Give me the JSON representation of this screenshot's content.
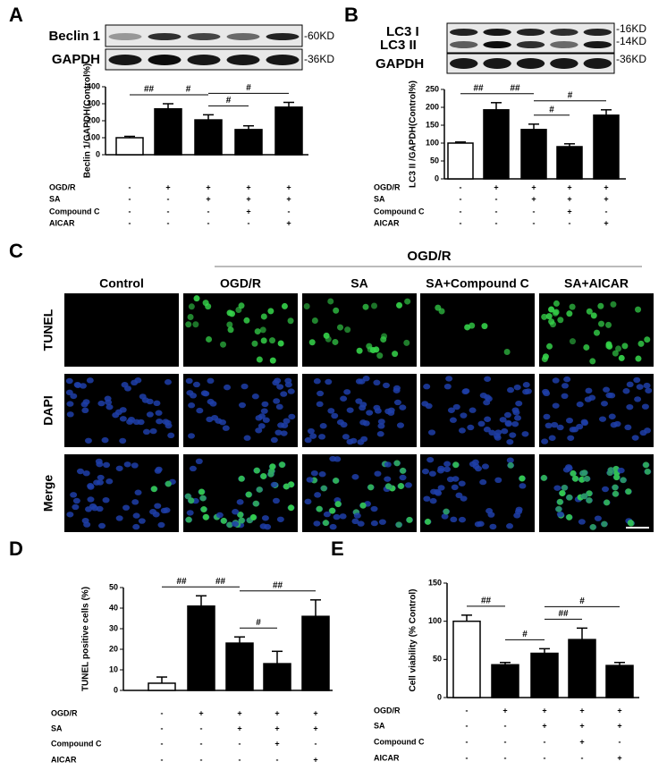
{
  "chart_data": [
    {
      "type": "bar",
      "panel": "A",
      "ylabel": "Beclin 1/GAPDH(Control%)",
      "values": [
        100,
        270,
        205,
        148,
        280
      ],
      "errors": [
        8,
        30,
        30,
        22,
        28
      ],
      "colors": [
        "#ffffff",
        "#000000",
        "#000000",
        "#000000",
        "#000000"
      ],
      "ylim": [
        0,
        400
      ],
      "yticks": [
        0,
        100,
        200,
        300,
        400
      ],
      "annotations": [
        {
          "text": "##",
          "between": [
            0,
            1
          ]
        },
        {
          "text": "#",
          "between": [
            1,
            2
          ]
        },
        {
          "text": "#",
          "between": [
            2,
            3
          ]
        },
        {
          "text": "#",
          "between": [
            2,
            4
          ]
        }
      ],
      "conditions": [
        {
          "name": "OGD/R",
          "marks": [
            "-",
            "+",
            "+",
            "+",
            "+"
          ]
        },
        {
          "name": "SA",
          "marks": [
            "-",
            "-",
            "+",
            "+",
            "+"
          ]
        },
        {
          "name": "Compound C",
          "marks": [
            "-",
            "-",
            "-",
            "+",
            "-"
          ]
        },
        {
          "name": "AICAR",
          "marks": [
            "-",
            "-",
            "-",
            "-",
            "+"
          ]
        }
      ]
    },
    {
      "type": "bar",
      "panel": "B",
      "ylabel": "LC3 II /GAPDH(Control%)",
      "values": [
        100,
        193,
        138,
        90,
        178
      ],
      "errors": [
        3,
        20,
        15,
        8,
        15
      ],
      "colors": [
        "#ffffff",
        "#000000",
        "#000000",
        "#000000",
        "#000000"
      ],
      "ylim": [
        0,
        250
      ],
      "yticks": [
        0,
        50,
        100,
        150,
        200,
        250
      ],
      "annotations": [
        {
          "text": "##",
          "between": [
            0,
            1
          ]
        },
        {
          "text": "##",
          "between": [
            1,
            2
          ]
        },
        {
          "text": "#",
          "between": [
            2,
            3
          ]
        },
        {
          "text": "#",
          "between": [
            2,
            4
          ]
        }
      ],
      "conditions": [
        {
          "name": "OGD/R",
          "marks": [
            "-",
            "+",
            "+",
            "+",
            "+"
          ]
        },
        {
          "name": "SA",
          "marks": [
            "-",
            "-",
            "+",
            "+",
            "+"
          ]
        },
        {
          "name": "Compound C",
          "marks": [
            "-",
            "-",
            "-",
            "+",
            "-"
          ]
        },
        {
          "name": "AICAR",
          "marks": [
            "-",
            "-",
            "-",
            "-",
            "+"
          ]
        }
      ]
    },
    {
      "type": "bar",
      "panel": "D",
      "ylabel": "TUNEL positive cells (%)",
      "values": [
        3.5,
        41,
        23,
        13,
        36
      ],
      "errors": [
        3,
        5,
        3,
        6,
        8
      ],
      "colors": [
        "#ffffff",
        "#000000",
        "#000000",
        "#000000",
        "#000000"
      ],
      "ylim": [
        0,
        50
      ],
      "yticks": [
        0,
        10,
        20,
        30,
        40,
        50
      ],
      "annotations": [
        {
          "text": "##",
          "between": [
            0,
            1
          ]
        },
        {
          "text": "##",
          "between": [
            1,
            2
          ]
        },
        {
          "text": "#",
          "between": [
            2,
            3
          ]
        },
        {
          "text": "##",
          "between": [
            2,
            4
          ]
        }
      ],
      "conditions": [
        {
          "name": "OGD/R",
          "marks": [
            "-",
            "+",
            "+",
            "+",
            "+"
          ]
        },
        {
          "name": "SA",
          "marks": [
            "-",
            "-",
            "+",
            "+",
            "+"
          ]
        },
        {
          "name": "Compound C",
          "marks": [
            "-",
            "-",
            "-",
            "+",
            "-"
          ]
        },
        {
          "name": "AICAR",
          "marks": [
            "-",
            "-",
            "-",
            "-",
            "+"
          ]
        }
      ]
    },
    {
      "type": "bar",
      "panel": "E",
      "ylabel": "Cell viability (% Control)",
      "values": [
        100,
        43,
        58,
        76,
        42
      ],
      "errors": [
        8,
        3,
        6,
        15,
        4
      ],
      "colors": [
        "#ffffff",
        "#000000",
        "#000000",
        "#000000",
        "#000000"
      ],
      "ylim": [
        0,
        150
      ],
      "yticks": [
        0,
        50,
        100,
        150
      ],
      "annotations": [
        {
          "text": "##",
          "between": [
            0,
            1
          ]
        },
        {
          "text": "#",
          "between": [
            1,
            2
          ]
        },
        {
          "text": "##",
          "between": [
            2,
            3
          ]
        },
        {
          "text": "#",
          "between": [
            2,
            4
          ]
        }
      ],
      "conditions": [
        {
          "name": "OGD/R",
          "marks": [
            "-",
            "+",
            "+",
            "+",
            "+"
          ]
        },
        {
          "name": "SA",
          "marks": [
            "-",
            "-",
            "+",
            "+",
            "+"
          ]
        },
        {
          "name": "Compound C",
          "marks": [
            "-",
            "-",
            "-",
            "+",
            "-"
          ]
        },
        {
          "name": "AICAR",
          "marks": [
            "-",
            "-",
            "-",
            "-",
            "+"
          ]
        }
      ]
    }
  ],
  "blots": [
    {
      "rows": [
        {
          "labels": [
            "Beclin 1"
          ],
          "sizes": [
            "-60KD"
          ]
        },
        {
          "labels": [
            "GAPDH"
          ],
          "sizes": [
            "-36KD"
          ]
        }
      ]
    },
    {
      "rows": [
        {
          "labels": [
            "LC3 I",
            "LC3 II"
          ],
          "sizes": [
            "-16KD",
            "-14KD"
          ]
        },
        {
          "labels": [
            "GAPDH"
          ],
          "sizes": [
            "-36KD"
          ]
        }
      ]
    }
  ],
  "microscopy": {
    "panel": "C",
    "group": "OGD/R",
    "columns": [
      "Control",
      "OGD/R",
      "SA",
      "SA+Compound C",
      "SA+AICAR"
    ],
    "rows": [
      {
        "label": "TUNEL",
        "color": "#2db34a"
      },
      {
        "label": "DAPI",
        "color": "#2b3a9c"
      },
      {
        "label": "Merge",
        "color": "#000000"
      }
    ]
  }
}
